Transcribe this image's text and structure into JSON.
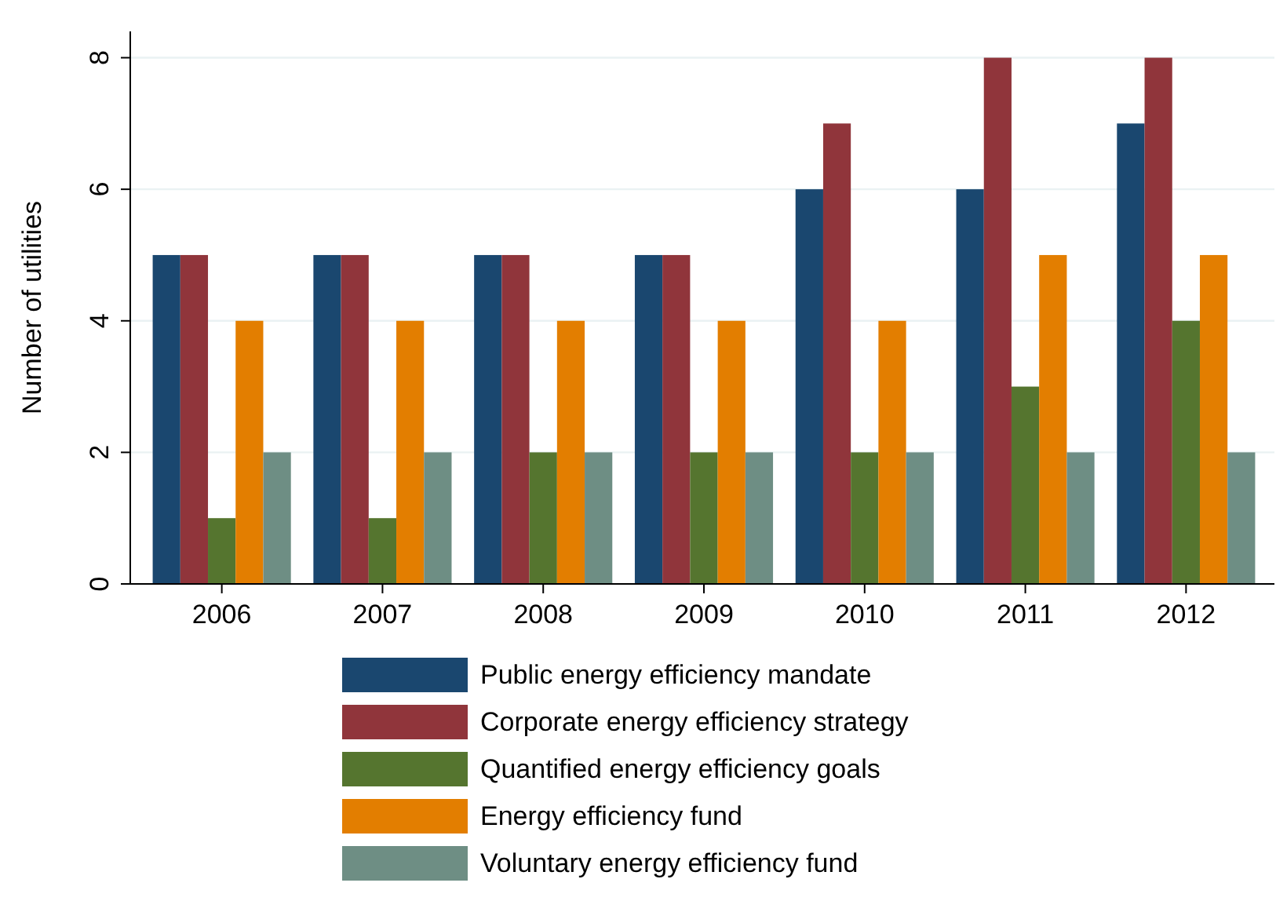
{
  "chart_data": {
    "type": "bar",
    "ylabel": "Number of utilities",
    "categories": [
      "2006",
      "2007",
      "2008",
      "2009",
      "2010",
      "2011",
      "2012"
    ],
    "series": [
      {
        "name": "Public energy efficiency mandate",
        "color": "#1a476f",
        "values": [
          5,
          5,
          5,
          5,
          6,
          6,
          7
        ]
      },
      {
        "name": "Corporate energy efficiency strategy",
        "color": "#90353b",
        "values": [
          5,
          5,
          5,
          5,
          7,
          8,
          8
        ]
      },
      {
        "name": "Quantified energy efficiency goals",
        "color": "#55752f",
        "values": [
          1,
          1,
          2,
          2,
          2,
          3,
          4
        ]
      },
      {
        "name": "Energy efficiency fund",
        "color": "#e37e00",
        "values": [
          4,
          4,
          4,
          4,
          4,
          5,
          5
        ]
      },
      {
        "name": "Voluntary energy efficiency fund",
        "color": "#6e8e84",
        "values": [
          2,
          2,
          2,
          2,
          2,
          2,
          2
        ]
      }
    ],
    "ylim": [
      0,
      8.4
    ],
    "yticks": [
      0,
      2,
      4,
      6,
      8
    ],
    "grid": "y",
    "legend": "bottom"
  }
}
